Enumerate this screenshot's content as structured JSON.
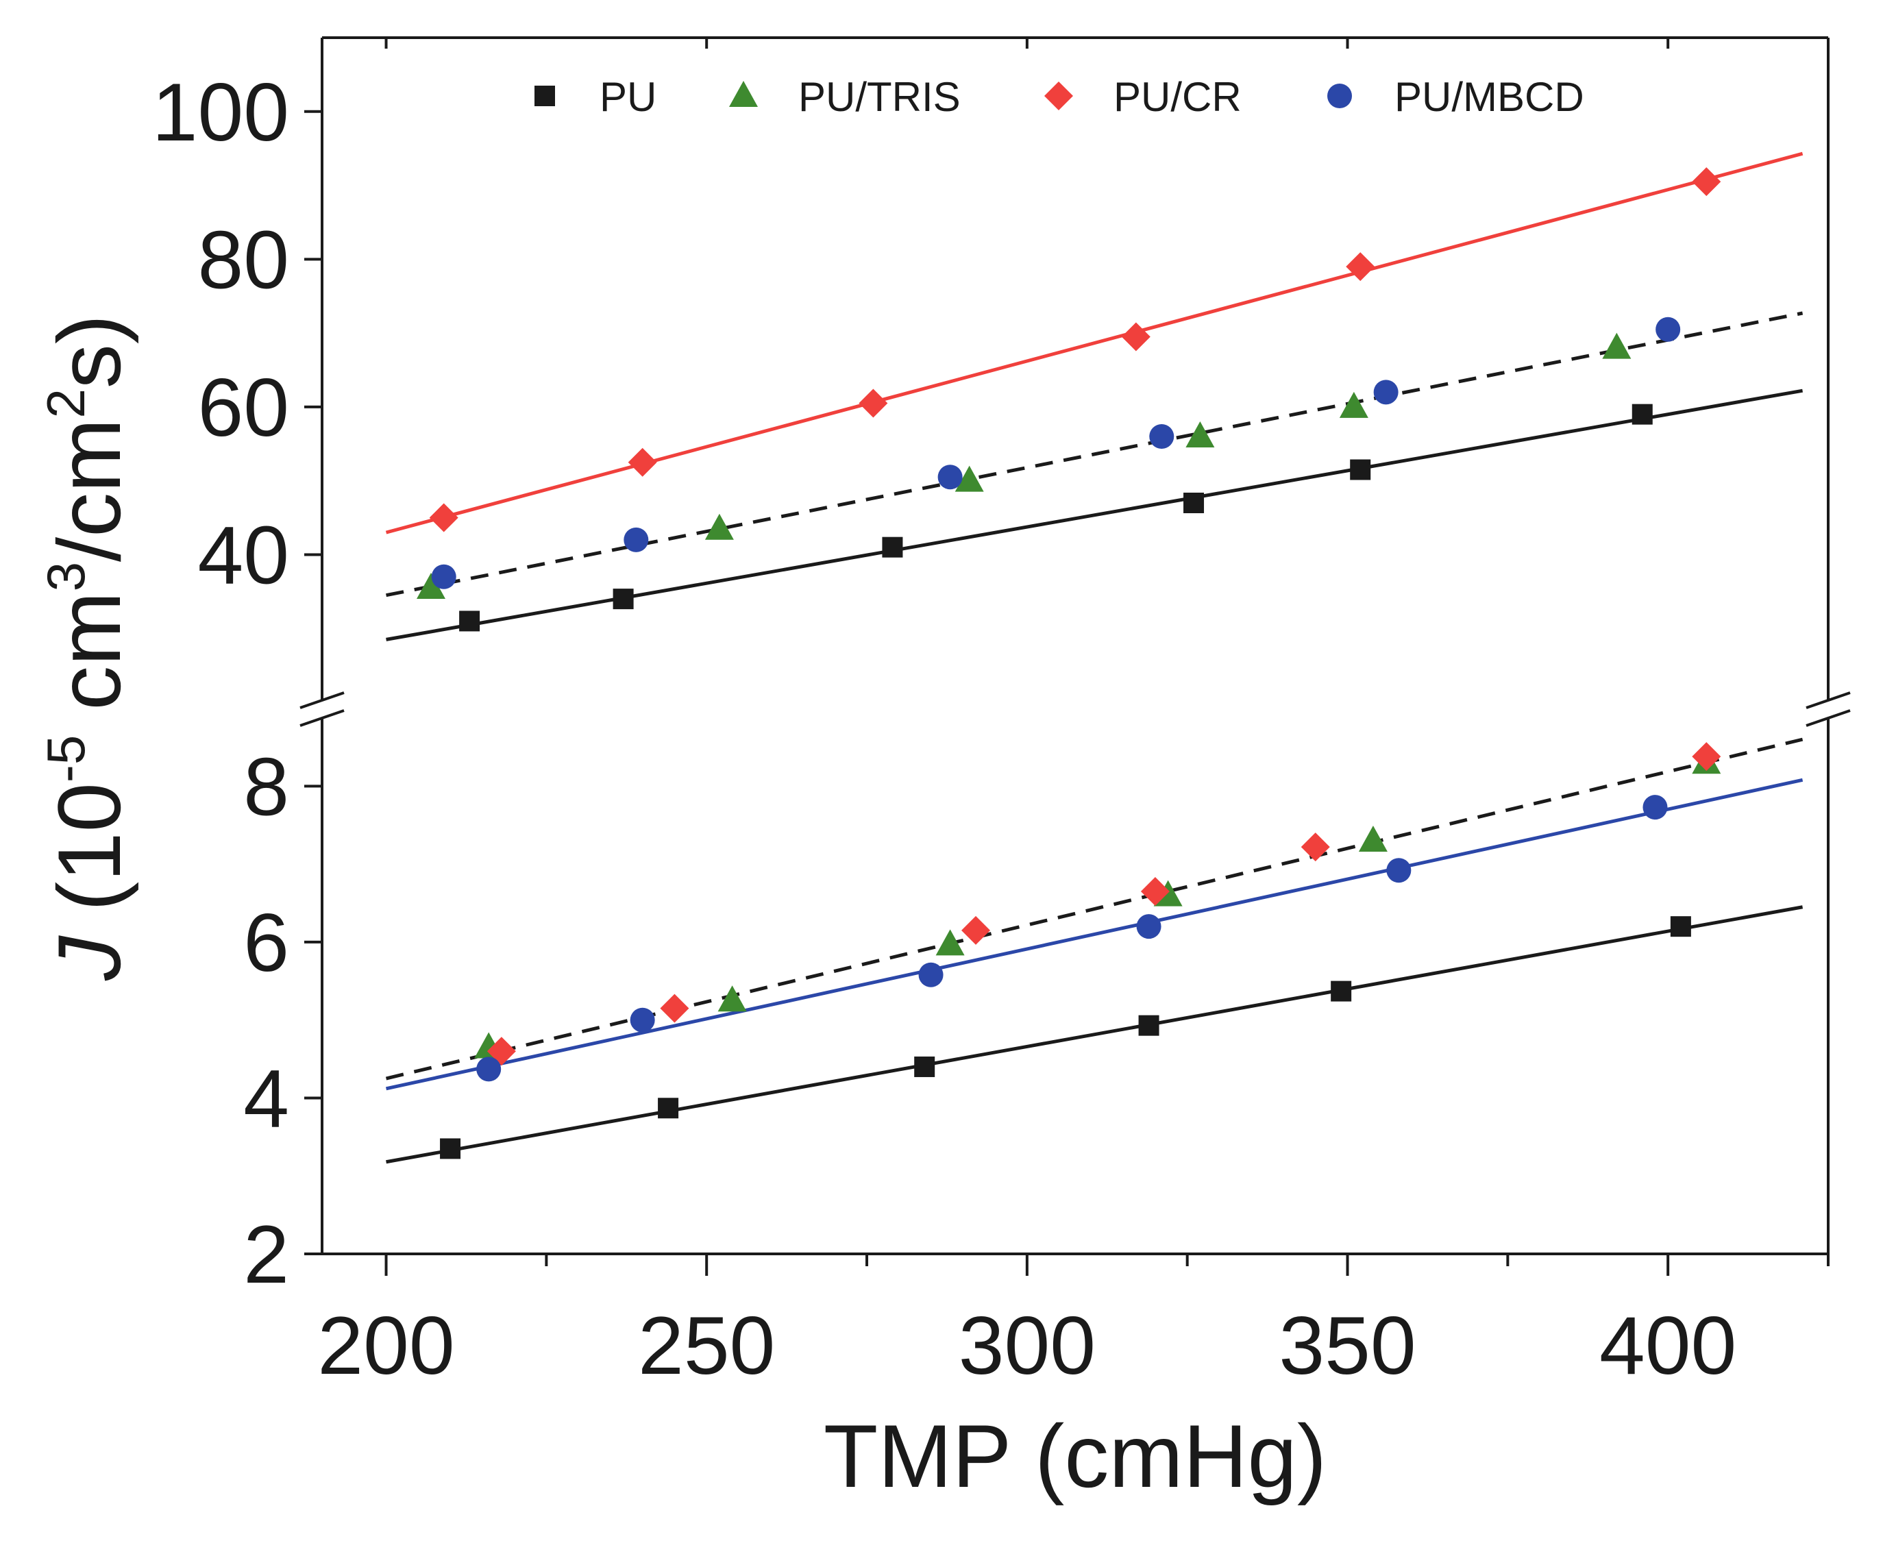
{
  "chart_data": {
    "type": "scatter",
    "xlabel": "TMP (cmHg)",
    "ylabel": {
      "prefix": "J",
      "open": " (10",
      "exp1": "-5",
      "unit1": " cm",
      "exp2": "3",
      "unit2": "/cm",
      "exp3": "2",
      "unit3": "s)"
    },
    "xlim": [
      190,
      425
    ],
    "x_ticks": [
      200,
      250,
      300,
      350,
      400
    ],
    "x_tick_labels": [
      "200",
      "250",
      "300",
      "350",
      "400"
    ],
    "axis_break": true,
    "upper_panel": {
      "ylim": [
        20,
        110
      ],
      "y_ticks": [
        40,
        60,
        80,
        100
      ],
      "y_tick_labels": [
        "40",
        "60",
        "80",
        "100"
      ]
    },
    "lower_panel": {
      "ylim": [
        2,
        8.9
      ],
      "y_ticks": [
        2,
        4,
        6,
        8
      ],
      "y_tick_labels": [
        "2",
        "4",
        "6",
        "8"
      ]
    },
    "legend": {
      "placement": "top-center",
      "entries": [
        {
          "label": "PU",
          "marker": "square",
          "color": "#1a1a1a"
        },
        {
          "label": "PU/TRIS",
          "marker": "triangle",
          "color": "#3e8a2f"
        },
        {
          "label": "PU/CR",
          "marker": "diamond",
          "color": "#f0403c"
        },
        {
          "label": "PU/MBCD",
          "marker": "circle",
          "color": "#2b47a8"
        }
      ]
    },
    "series": [
      {
        "name": "PU",
        "panel": "upper",
        "marker": "square",
        "color": "#1a1a1a",
        "x": [
          213,
          237,
          279,
          326,
          352,
          396
        ],
        "y": [
          31,
          34,
          41,
          47,
          51.5,
          59
        ]
      },
      {
        "name": "PU/TRIS",
        "panel": "upper",
        "marker": "triangle",
        "color": "#3e8a2f",
        "x": [
          207,
          252,
          291,
          327,
          351,
          392
        ],
        "y": [
          35.5,
          43.5,
          50,
          56,
          60,
          68
        ]
      },
      {
        "name": "PU/CR",
        "panel": "upper",
        "marker": "diamond",
        "color": "#f0403c",
        "x": [
          209,
          240,
          276,
          317,
          352,
          406
        ],
        "y": [
          45,
          52.5,
          60.5,
          69.5,
          79,
          90.5
        ]
      },
      {
        "name": "PU/MBCD",
        "panel": "upper",
        "marker": "circle",
        "color": "#2b47a8",
        "x": [
          209,
          239,
          288,
          321,
          356,
          400
        ],
        "y": [
          37,
          42,
          50.5,
          56,
          62,
          70.5
        ]
      },
      {
        "name": "PU",
        "panel": "lower",
        "marker": "square",
        "color": "#1a1a1a",
        "x": [
          210,
          244,
          284,
          319,
          349,
          402
        ],
        "y": [
          3.35,
          3.87,
          4.4,
          4.93,
          5.37,
          6.2
        ]
      },
      {
        "name": "PU/TRIS",
        "panel": "lower",
        "marker": "triangle",
        "color": "#3e8a2f",
        "x": [
          216,
          254,
          288,
          322,
          354,
          406
        ],
        "y": [
          4.65,
          5.25,
          5.97,
          6.6,
          7.3,
          8.3
        ]
      },
      {
        "name": "PU/CR",
        "panel": "lower",
        "marker": "diamond",
        "color": "#f0403c",
        "x": [
          218,
          245,
          292,
          320,
          345,
          406
        ],
        "y": [
          4.6,
          5.15,
          6.15,
          6.65,
          7.22,
          8.38
        ]
      },
      {
        "name": "PU/MBCD",
        "panel": "lower",
        "marker": "circle",
        "color": "#2b47a8",
        "x": [
          216,
          240,
          285,
          319,
          358,
          398
        ],
        "y": [
          4.37,
          5.0,
          5.58,
          6.2,
          6.92,
          7.73
        ]
      }
    ],
    "fit_lines": [
      {
        "name": "PU fit",
        "panel": "upper",
        "style": "solid",
        "color": "#1a1a1a",
        "x": [
          200,
          421
        ],
        "y": [
          28.5,
          62.2
        ]
      },
      {
        "name": "PU/TRIS + PU/MBCD fit",
        "panel": "upper",
        "style": "dashed",
        "color": "#1a1a1a",
        "x": [
          200,
          421
        ],
        "y": [
          34.5,
          72.7
        ]
      },
      {
        "name": "PU/CR fit",
        "panel": "upper",
        "style": "solid",
        "color": "#f0403c",
        "x": [
          200,
          421
        ],
        "y": [
          43,
          94.3
        ]
      },
      {
        "name": "PU fit",
        "panel": "lower",
        "style": "solid",
        "color": "#1a1a1a",
        "x": [
          200,
          421
        ],
        "y": [
          3.18,
          6.45
        ]
      },
      {
        "name": "PU/TRIS + PU/CR fit",
        "panel": "lower",
        "style": "dashed",
        "color": "#1a1a1a",
        "x": [
          200,
          421
        ],
        "y": [
          4.25,
          8.6
        ]
      },
      {
        "name": "PU/MBCD fit",
        "panel": "lower",
        "style": "solid",
        "color": "#2b47a8",
        "x": [
          200,
          421
        ],
        "y": [
          4.12,
          8.08
        ]
      }
    ]
  }
}
